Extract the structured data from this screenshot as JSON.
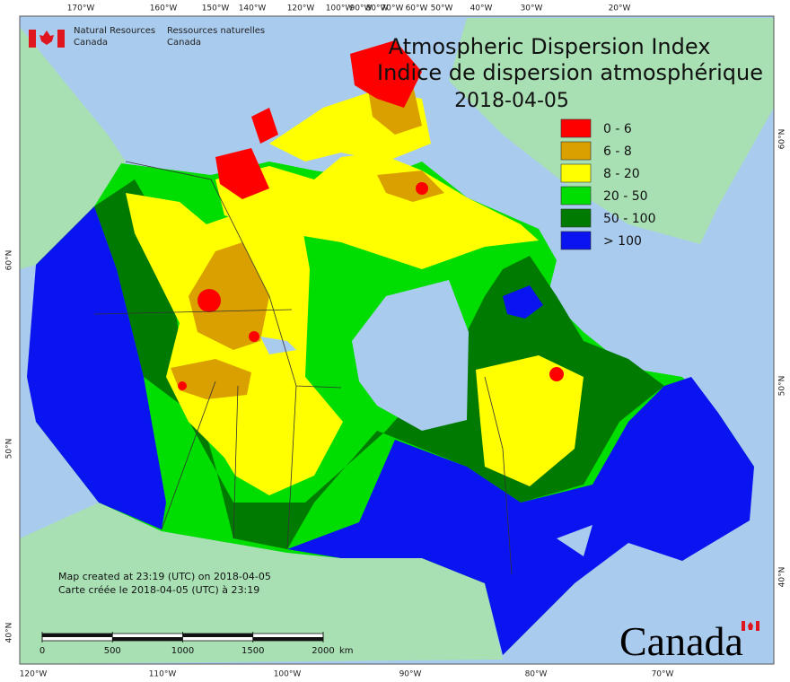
{
  "agency": {
    "en": [
      "Natural Resources",
      "Canada"
    ],
    "fr": [
      "Ressources naturelles",
      "Canada"
    ]
  },
  "title": [
    "Atmospheric Dispersion Index",
    "Indice de dispersion atmosphérique"
  ],
  "date": "2018-04-05",
  "legend": [
    {
      "label": "0 - 6",
      "color": "#ff0000"
    },
    {
      "label": "6 - 8",
      "color": "#d9a000"
    },
    {
      "label": "8 - 20",
      "color": "#ffff00"
    },
    {
      "label": "20 - 50",
      "color": "#00dd00"
    },
    {
      "label": "50 - 100",
      "color": "#007a00"
    },
    {
      "label": "> 100",
      "color": "#0a14f0"
    }
  ],
  "graticule": {
    "top": [
      "170°W",
      "160°W",
      "150°W",
      "140°W",
      "120°W",
      "100°W",
      "90°W",
      "80°W",
      "70°W",
      "60°W",
      "50°W",
      "40°W",
      "30°W",
      "20°W"
    ],
    "bottom": [
      "120°W",
      "110°W",
      "100°W",
      "90°W",
      "80°W",
      "70°W"
    ],
    "left": [
      "60°N",
      "50°N",
      "40°N"
    ],
    "right": [
      "60°N",
      "50°N",
      "40°N"
    ]
  },
  "credits": [
    "Map created at 23:19 (UTC) on 2018-04-05",
    "Carte créée le 2018-04-05 (UTC) à 23:19"
  ],
  "scale_bar": {
    "ticks": [
      0,
      500,
      1000,
      1500,
      2000
    ],
    "unit": "km"
  },
  "wordmark": "Canada"
}
